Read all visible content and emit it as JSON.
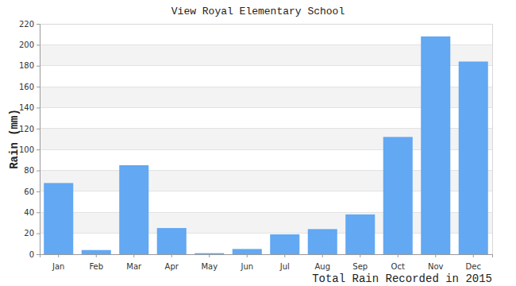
{
  "chart_data": {
    "type": "bar",
    "title": "View Royal Elementary School",
    "x_label": "Total Rain Recorded in 2015",
    "y_label": "Rain (mm)",
    "categories": [
      "Jan",
      "Feb",
      "Mar",
      "Apr",
      "May",
      "Jun",
      "Jul",
      "Aug",
      "Sep",
      "Oct",
      "Nov",
      "Dec"
    ],
    "values": [
      68,
      4,
      85,
      25,
      1,
      5,
      19,
      24,
      38,
      112,
      208,
      184
    ],
    "color": "#62a8f2",
    "ylim": [
      0,
      220
    ],
    "yticks": [
      0,
      20,
      40,
      60,
      80,
      100,
      120,
      140,
      160,
      180,
      200,
      220
    ],
    "grid": true
  }
}
